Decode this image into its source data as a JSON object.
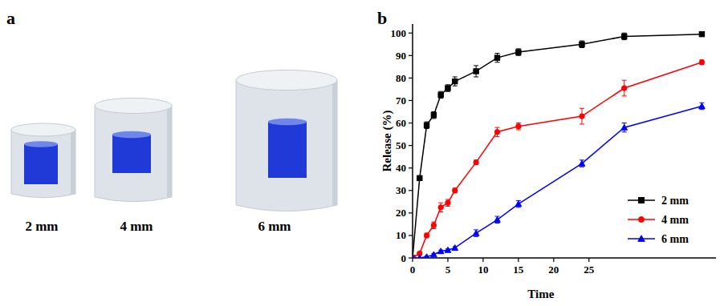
{
  "figure": {
    "panel_labels": [
      "a",
      "b"
    ]
  },
  "diagram": {
    "captions": [
      "2 mm",
      "4 mm",
      "6 mm"
    ]
  },
  "chart_data": {
    "type": "line",
    "x_label": "Time",
    "y_label": "Release (%)",
    "x": [
      0,
      1,
      2,
      3,
      4,
      5,
      6,
      9,
      12,
      15,
      24,
      30,
      41
    ],
    "xlim": [
      0,
      43
    ],
    "xticks": [
      0,
      5,
      10,
      15,
      20,
      25
    ],
    "ylim": [
      0,
      104
    ],
    "yticks": [
      0,
      10,
      20,
      30,
      40,
      50,
      60,
      70,
      80,
      90,
      100
    ],
    "legend": "lower-right",
    "series": [
      {
        "name": "2 mm",
        "color": "#000000",
        "marker": "square",
        "values": [
          0,
          35.5,
          59,
          63.5,
          72.5,
          75.5,
          78.5,
          83,
          89,
          91.5,
          95,
          98.5,
          99.5
        ],
        "errors": [
          0,
          0.5,
          1.5,
          1.5,
          1.5,
          1.5,
          2,
          2.5,
          2,
          1.5,
          1.5,
          1.5,
          1
        ]
      },
      {
        "name": "4 mm",
        "color": "#ff0000",
        "marker": "circle",
        "values": [
          0,
          2,
          10,
          14.5,
          22.5,
          24.5,
          30,
          42.5,
          56,
          58.5,
          63,
          75.5,
          87
        ],
        "errors": [
          0,
          0.5,
          1,
          1.5,
          2,
          1.5,
          1,
          1,
          2,
          1.5,
          3.5,
          3.5,
          1
        ]
      },
      {
        "name": "6 mm",
        "color": "#0000ff",
        "marker": "triangle",
        "values": [
          0,
          0,
          0.5,
          1.5,
          3,
          3.5,
          4.5,
          11,
          17,
          24,
          42,
          58,
          67.5
        ],
        "errors": [
          0,
          0,
          0.3,
          0.5,
          0.5,
          0.5,
          0.5,
          1.5,
          1.5,
          1.5,
          1.5,
          2,
          1.5
        ]
      }
    ]
  }
}
